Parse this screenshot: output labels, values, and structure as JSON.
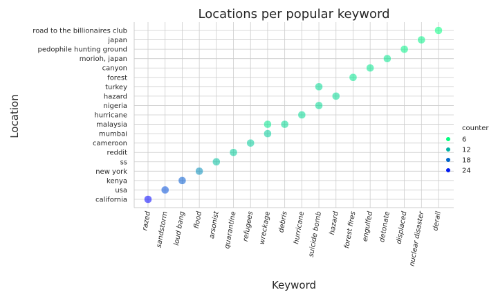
{
  "chart_data": {
    "type": "scatter",
    "title": "Locations per popular keyword",
    "xlabel": "Keyword",
    "ylabel": "Location",
    "x_categories": [
      "razed",
      "sandstorm",
      "loud bang",
      "flood",
      "arsonist",
      "quarantine",
      "refugees",
      "wreckage",
      "debris",
      "hurricane",
      "suicide bomb",
      "hazard",
      "forest fires",
      "engulfed",
      "detonate",
      "displaced",
      "nuclear disaster",
      "derail"
    ],
    "y_categories": [
      "california",
      "usa",
      "kenya",
      "new york",
      "ss",
      "reddit",
      "cameroon",
      "mumbai",
      "malaysia",
      "hurricane",
      "nigeria",
      "hazard",
      "turkey",
      "forest",
      "canyon",
      "morioh, japan",
      "pedophile hunting ground",
      "japan",
      "road to the billionaires club"
    ],
    "points": [
      {
        "x": "razed",
        "y": "california",
        "counter": 26
      },
      {
        "x": "sandstorm",
        "y": "usa",
        "counter": 20
      },
      {
        "x": "loud bang",
        "y": "kenya",
        "counter": 19
      },
      {
        "x": "flood",
        "y": "new york",
        "counter": 15
      },
      {
        "x": "arsonist",
        "y": "ss",
        "counter": 11
      },
      {
        "x": "quarantine",
        "y": "reddit",
        "counter": 10
      },
      {
        "x": "refugees",
        "y": "cameroon",
        "counter": 10
      },
      {
        "x": "wreckage",
        "y": "mumbai",
        "counter": 10
      },
      {
        "x": "wreckage",
        "y": "malaysia",
        "counter": 8
      },
      {
        "x": "debris",
        "y": "malaysia",
        "counter": 9
      },
      {
        "x": "hurricane",
        "y": "hurricane",
        "counter": 9
      },
      {
        "x": "suicide bomb",
        "y": "nigeria",
        "counter": 9
      },
      {
        "x": "suicide bomb",
        "y": "turkey",
        "counter": 9
      },
      {
        "x": "hazard",
        "y": "hazard",
        "counter": 9
      },
      {
        "x": "forest fires",
        "y": "forest",
        "counter": 8
      },
      {
        "x": "engulfed",
        "y": "canyon",
        "counter": 8
      },
      {
        "x": "detonate",
        "y": "morioh, japan",
        "counter": 8
      },
      {
        "x": "displaced",
        "y": "pedophile hunting ground",
        "counter": 7
      },
      {
        "x": "nuclear disaster",
        "y": "japan",
        "counter": 7
      },
      {
        "x": "derail",
        "y": "road to the billionaires club",
        "counter": 6
      }
    ],
    "legend": {
      "title": "counter",
      "entries": [
        {
          "label": "6",
          "value": 6
        },
        {
          "label": "12",
          "value": 12
        },
        {
          "label": "18",
          "value": 18
        },
        {
          "label": "24",
          "value": 24
        }
      ],
      "placement": "right"
    },
    "colormap": [
      "#00ff7f",
      "#0000ff"
    ],
    "counter_range": [
      6,
      26
    ],
    "grid": true
  }
}
